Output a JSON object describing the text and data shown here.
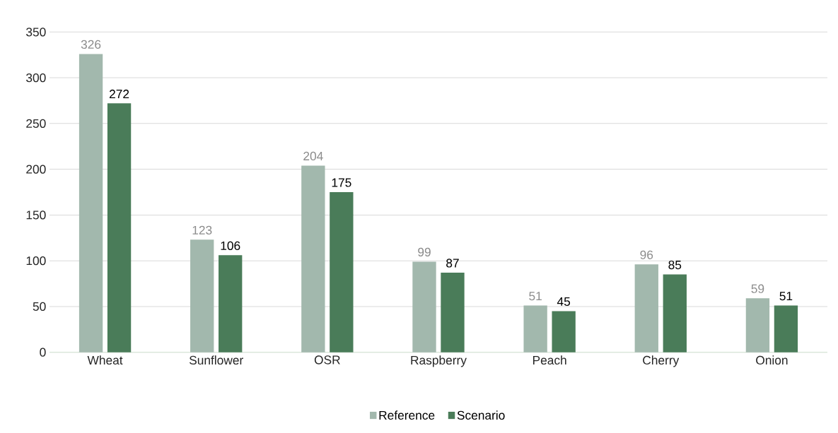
{
  "chart_data": {
    "type": "bar",
    "categories": [
      "Wheat",
      "Sunflower",
      "OSR",
      "Raspberry",
      "Peach",
      "Cherry",
      "Onion"
    ],
    "series": [
      {
        "name": "Reference",
        "color": "#a2b8ad",
        "values": [
          326,
          123,
          204,
          99,
          51,
          96,
          59
        ]
      },
      {
        "name": "Scenario",
        "color": "#4a7c59",
        "values": [
          272,
          106,
          175,
          87,
          45,
          85,
          51
        ]
      }
    ],
    "ylim": [
      0,
      350
    ],
    "yticks": [
      0,
      50,
      100,
      150,
      200,
      250,
      300,
      350
    ],
    "grid": "y",
    "legend": "bottom",
    "data_labels": true
  }
}
